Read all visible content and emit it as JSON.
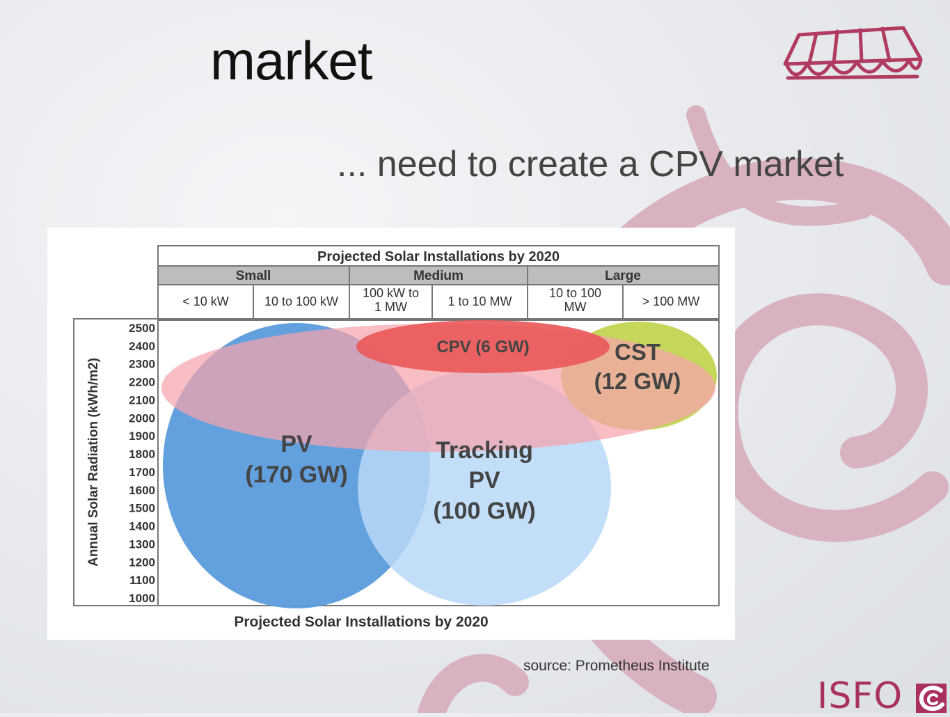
{
  "slide": {
    "title": "market",
    "subtitle": "... need to create a CPV market",
    "source": "source: Prometheus Institute"
  },
  "logos": {
    "top_logo": "isfoc-building-logo",
    "bottom_logo_text": "ISFO",
    "bottom_logo_mark": "isfoc-c-mark-icon"
  },
  "figure": {
    "top_title": "Projected Solar Installations by 2020",
    "bottom_title": "Projected Solar Installations by 2020",
    "yaxis_label": "Annual Solar Radiation (kWh/m2)",
    "size_groups": [
      "Small",
      "Medium",
      "Large"
    ],
    "size_ranges": [
      [
        "< 10 kW"
      ],
      [
        "10 to 100 kW"
      ],
      [
        "100 kW to",
        "1 MW"
      ],
      [
        "1 to 10 MW"
      ],
      [
        "10 to 100",
        "MW"
      ],
      [
        "> 100 MW"
      ]
    ],
    "y_ticks": [
      "2500",
      "2400",
      "2300",
      "2200",
      "2100",
      "2000",
      "1900",
      "1800",
      "1700",
      "1600",
      "1500",
      "1400",
      "1300",
      "1200",
      "1100",
      "1000"
    ],
    "regions": [
      {
        "lines": [
          "PV",
          "(170 GW)"
        ],
        "color": "#5b9bdc"
      },
      {
        "lines": [
          "Tracking",
          "PV",
          "(100 GW)"
        ],
        "color": "#b7d8f7"
      },
      {
        "lines": [
          "CPV (6 GW)"
        ],
        "color": "#ea5a5a"
      },
      {
        "lines": [
          "CST",
          "(12 GW)"
        ],
        "color": "#c5d65a"
      }
    ],
    "overlay_color": "#f6a4ad"
  }
}
